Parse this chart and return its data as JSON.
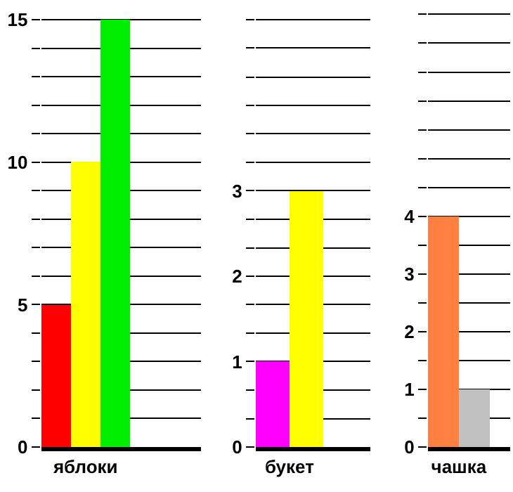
{
  "chart_data": [
    {
      "type": "bar",
      "categories": [
        "яблоки"
      ],
      "series": [
        {
          "color": "#ff0000",
          "values": [
            5
          ]
        },
        {
          "color": "#ffff00",
          "values": [
            10
          ]
        },
        {
          "color": "#00ee00",
          "values": [
            15
          ]
        }
      ],
      "ylim": [
        0,
        15.6
      ],
      "yticks": [
        0,
        {
          "value": 1,
          "label": null
        },
        {
          "value": 2,
          "label": null
        },
        {
          "value": 3,
          "label": null
        },
        {
          "value": 4,
          "label": null
        },
        5,
        {
          "value": 6,
          "label": null
        },
        {
          "value": 7,
          "label": null
        },
        {
          "value": 8,
          "label": null
        },
        {
          "value": 9,
          "label": null
        },
        10,
        {
          "value": 11,
          "label": null
        },
        {
          "value": 12,
          "label": null
        },
        {
          "value": 13,
          "label": null
        },
        {
          "value": 14,
          "label": null
        },
        15
      ],
      "grid": "y"
    },
    {
      "type": "bar",
      "categories": [
        "букет"
      ],
      "series": [
        {
          "color": "#ff00ff",
          "values": [
            1
          ]
        },
        {
          "color": "#ffff00",
          "values": [
            3
          ]
        }
      ],
      "ylim": [
        0,
        5.2
      ],
      "yticks": [
        0,
        {
          "value": 0.33,
          "label": null
        },
        {
          "value": 0.67,
          "label": null
        },
        1,
        {
          "value": 1.33,
          "label": null
        },
        {
          "value": 1.67,
          "label": null
        },
        2,
        {
          "value": 2.33,
          "label": null
        },
        {
          "value": 2.67,
          "label": null
        },
        3,
        {
          "value": 3.33,
          "label": null
        },
        {
          "value": 3.67,
          "label": null
        },
        {
          "value": 4,
          "label": null
        },
        {
          "value": 4.33,
          "label": null
        },
        {
          "value": 4.67,
          "label": null
        },
        {
          "value": 5,
          "label": null
        }
      ],
      "grid": "y"
    },
    {
      "type": "bar",
      "categories": [
        "чашка"
      ],
      "series": [
        {
          "color": "#ff8040",
          "values": [
            4
          ]
        },
        {
          "color": "#c0c0c0",
          "values": [
            1
          ]
        }
      ],
      "ylim": [
        0,
        7.7
      ],
      "yticks": [
        0,
        {
          "value": 0.5,
          "label": null
        },
        1,
        {
          "value": 1.5,
          "label": null
        },
        2,
        {
          "value": 2.5,
          "label": null
        },
        3,
        {
          "value": 3.5,
          "label": null
        },
        4,
        {
          "value": 4.5,
          "label": null
        },
        {
          "value": 5,
          "label": null
        },
        {
          "value": 5.5,
          "label": null
        },
        {
          "value": 6,
          "label": null
        },
        {
          "value": 6.5,
          "label": null
        },
        {
          "value": 7,
          "label": null
        },
        {
          "value": 7.5,
          "label": null
        }
      ],
      "grid": "y"
    }
  ]
}
